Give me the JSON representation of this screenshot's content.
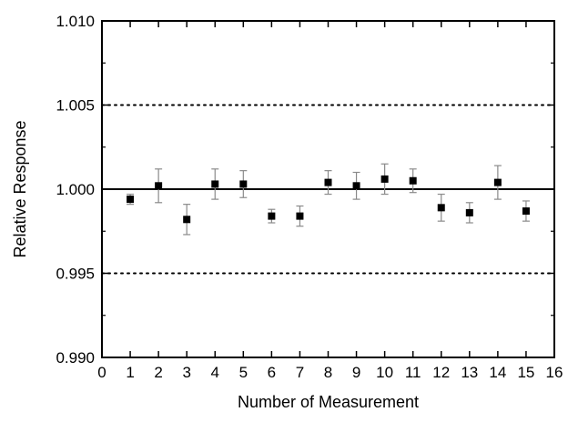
{
  "chart_data": {
    "type": "scatter",
    "title": "",
    "xlabel": "Number of Measurement",
    "ylabel": "Relative Response",
    "xlim": [
      0,
      16
    ],
    "ylim": [
      0.99,
      1.01
    ],
    "x_ticks": [
      0,
      1,
      2,
      3,
      4,
      5,
      6,
      7,
      8,
      9,
      10,
      11,
      12,
      13,
      14,
      15,
      16
    ],
    "x_tick_labels": [
      "0",
      "1",
      "2",
      "3",
      "4",
      "5",
      "6",
      "7",
      "8",
      "9",
      "10",
      "11",
      "12",
      "13",
      "14",
      "15",
      "16"
    ],
    "y_ticks": [
      0.99,
      0.995,
      1.0,
      1.005,
      1.01
    ],
    "y_tick_labels": [
      "0.990",
      "0.995",
      "1.000",
      "1.005",
      "1.010"
    ],
    "grid": false,
    "reference_lines": [
      {
        "y": 1.0,
        "style": "solid"
      },
      {
        "y": 1.005,
        "style": "dotted"
      },
      {
        "y": 0.995,
        "style": "dotted"
      }
    ],
    "series": [
      {
        "marker": "square",
        "color": "#000000",
        "errorbar_color": "#8a8a8a",
        "x": [
          1,
          2,
          3,
          4,
          5,
          6,
          7,
          8,
          9,
          10,
          11,
          12,
          13,
          14,
          15
        ],
        "y": [
          0.9994,
          1.0002,
          0.9982,
          1.0003,
          1.0003,
          0.9984,
          0.9984,
          1.0004,
          1.0002,
          1.0006,
          1.0005,
          0.9989,
          0.9986,
          1.0004,
          0.9987
        ],
        "err": [
          0.0003,
          0.001,
          0.0009,
          0.0009,
          0.0008,
          0.0004,
          0.0006,
          0.0007,
          0.0008,
          0.0009,
          0.0007,
          0.0008,
          0.0006,
          0.001,
          0.0006
        ]
      }
    ]
  }
}
